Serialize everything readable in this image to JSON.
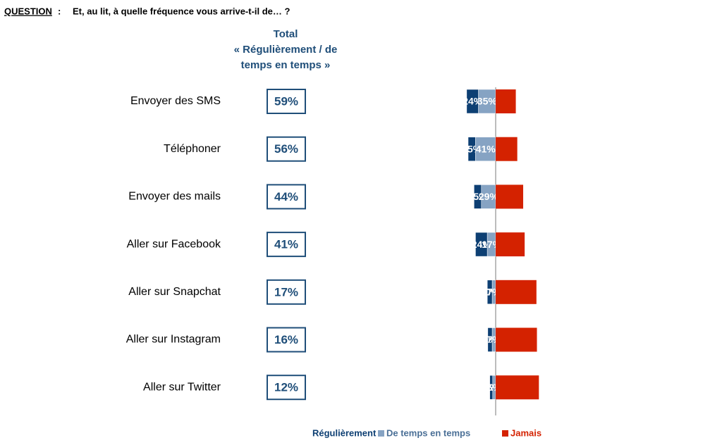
{
  "chart_data": {
    "type": "diverging-bar",
    "question_label": "QUESTION",
    "question_separator": ":",
    "question": "Et, au lit, à quelle fréquence vous arrive-t-il de… ?",
    "total_header": [
      "Total",
      "« Régulièrement / de",
      "temps en temps »"
    ],
    "categories": [
      "Envoyer des SMS",
      "Téléphoner",
      "Envoyer des mails",
      "Aller sur Facebook",
      "Aller sur Snapchat",
      "Aller sur Instagram",
      "Aller sur Twitter"
    ],
    "totals": [
      59,
      56,
      44,
      41,
      17,
      16,
      12
    ],
    "totals_labels": [
      "59%",
      "56%",
      "44%",
      "41%",
      "17%",
      "16%",
      "12%"
    ],
    "series": [
      {
        "name": "Régulièrement",
        "color": "#0d3f73",
        "side": "left",
        "values": [
          24,
          15,
          15,
          24,
          10,
          9,
          6
        ],
        "value_labels": [
          "24%",
          "15%",
          "15%",
          "24%",
          "10%",
          "9%",
          "6%"
        ]
      },
      {
        "name": "De temps en temps",
        "color": "#86a3c3",
        "side": "left",
        "values": [
          35,
          41,
          29,
          17,
          7,
          7,
          6
        ],
        "value_labels": [
          "35%",
          "41%",
          "29%",
          "17%",
          "7%",
          "7%",
          "6%"
        ]
      },
      {
        "name": "Jamais",
        "color": "#d42200",
        "side": "right",
        "values": [
          41,
          44,
          56,
          59,
          83,
          84,
          88
        ]
      }
    ]
  }
}
